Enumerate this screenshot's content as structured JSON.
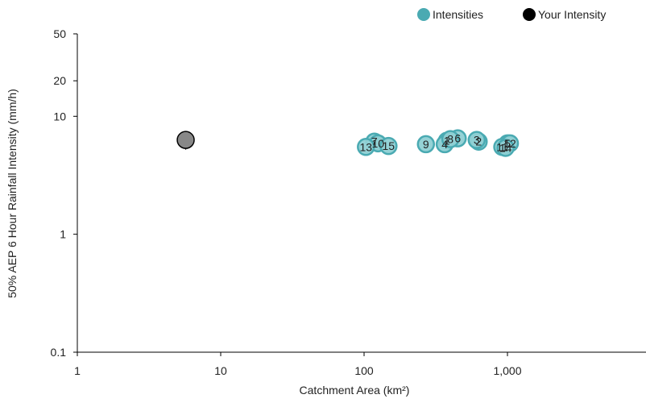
{
  "chart_data": {
    "type": "scatter",
    "xlabel": "Catchment Area (km²)",
    "ylabel": "50% AEP 6 Hour Rainfall Intensity (mm/h)",
    "x_scale": "log",
    "y_scale": "log",
    "xlim": [
      1,
      7000
    ],
    "ylim": [
      0.1,
      50
    ],
    "x_ticks": [
      {
        "value": 1,
        "label": "1"
      },
      {
        "value": 10,
        "label": "10"
      },
      {
        "value": 100,
        "label": "100"
      },
      {
        "value": 1000,
        "label": "1,000"
      }
    ],
    "y_ticks": [
      {
        "value": 0.1,
        "label": "0.1"
      },
      {
        "value": 1,
        "label": "1"
      },
      {
        "value": 10,
        "label": "10"
      },
      {
        "value": 20,
        "label": "20"
      },
      {
        "value": 50,
        "label": "50"
      }
    ],
    "grid": false,
    "legend_position": "top-right",
    "series": [
      {
        "name": "Intensities",
        "color": "#4AAAB2",
        "points": [
          {
            "label": "1",
            "x": 378,
            "y": 6.2
          },
          {
            "label": "2",
            "x": 630,
            "y": 6.1
          },
          {
            "label": "3",
            "x": 610,
            "y": 6.3
          },
          {
            "label": "4",
            "x": 365,
            "y": 5.8
          },
          {
            "label": "5",
            "x": 1000,
            "y": 5.9
          },
          {
            "label": "6",
            "x": 450,
            "y": 6.5
          },
          {
            "label": "7",
            "x": 118,
            "y": 6.1
          },
          {
            "label": "8",
            "x": 400,
            "y": 6.4
          },
          {
            "label": "9",
            "x": 270,
            "y": 5.8
          },
          {
            "label": "10",
            "x": 125,
            "y": 5.9
          },
          {
            "label": "11",
            "x": 920,
            "y": 5.5
          },
          {
            "label": "12",
            "x": 1040,
            "y": 5.9
          },
          {
            "label": "13",
            "x": 103,
            "y": 5.5
          },
          {
            "label": "14",
            "x": 970,
            "y": 5.4
          },
          {
            "label": "15",
            "x": 148,
            "y": 5.6
          }
        ]
      },
      {
        "name": "Your Intensity",
        "color": "#888888",
        "legend_color": "#000000",
        "points": [
          {
            "label": "",
            "x": 5.7,
            "y": 6.3
          }
        ]
      }
    ]
  }
}
